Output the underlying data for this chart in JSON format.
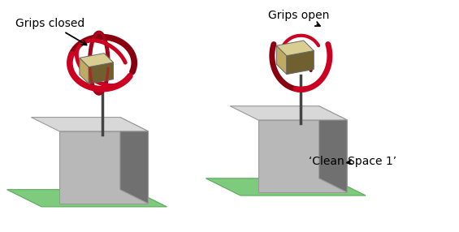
{
  "fig_width": 5.65,
  "fig_height": 2.86,
  "dpi": 100,
  "bg_color": "#ffffff",
  "label_left": "Grips closed",
  "label_right": "Grips open",
  "label_space": "‘Clean Space 1’",
  "label_fontsize": 10,
  "green_color": "#7ecb7e",
  "green_edge": "#5aaa5a",
  "cube_top_color": "#d8ce92",
  "cube_front_color": "#c0aa60",
  "cube_side_color": "#706030",
  "box_top_color": "#d8d8d8",
  "box_front_color": "#b8b8b8",
  "box_side_color": "#707070",
  "gripper_color_main": "#cc0020",
  "gripper_color_dark": "#880010",
  "stem_color": "#444444",
  "arrow_color": "#000000"
}
